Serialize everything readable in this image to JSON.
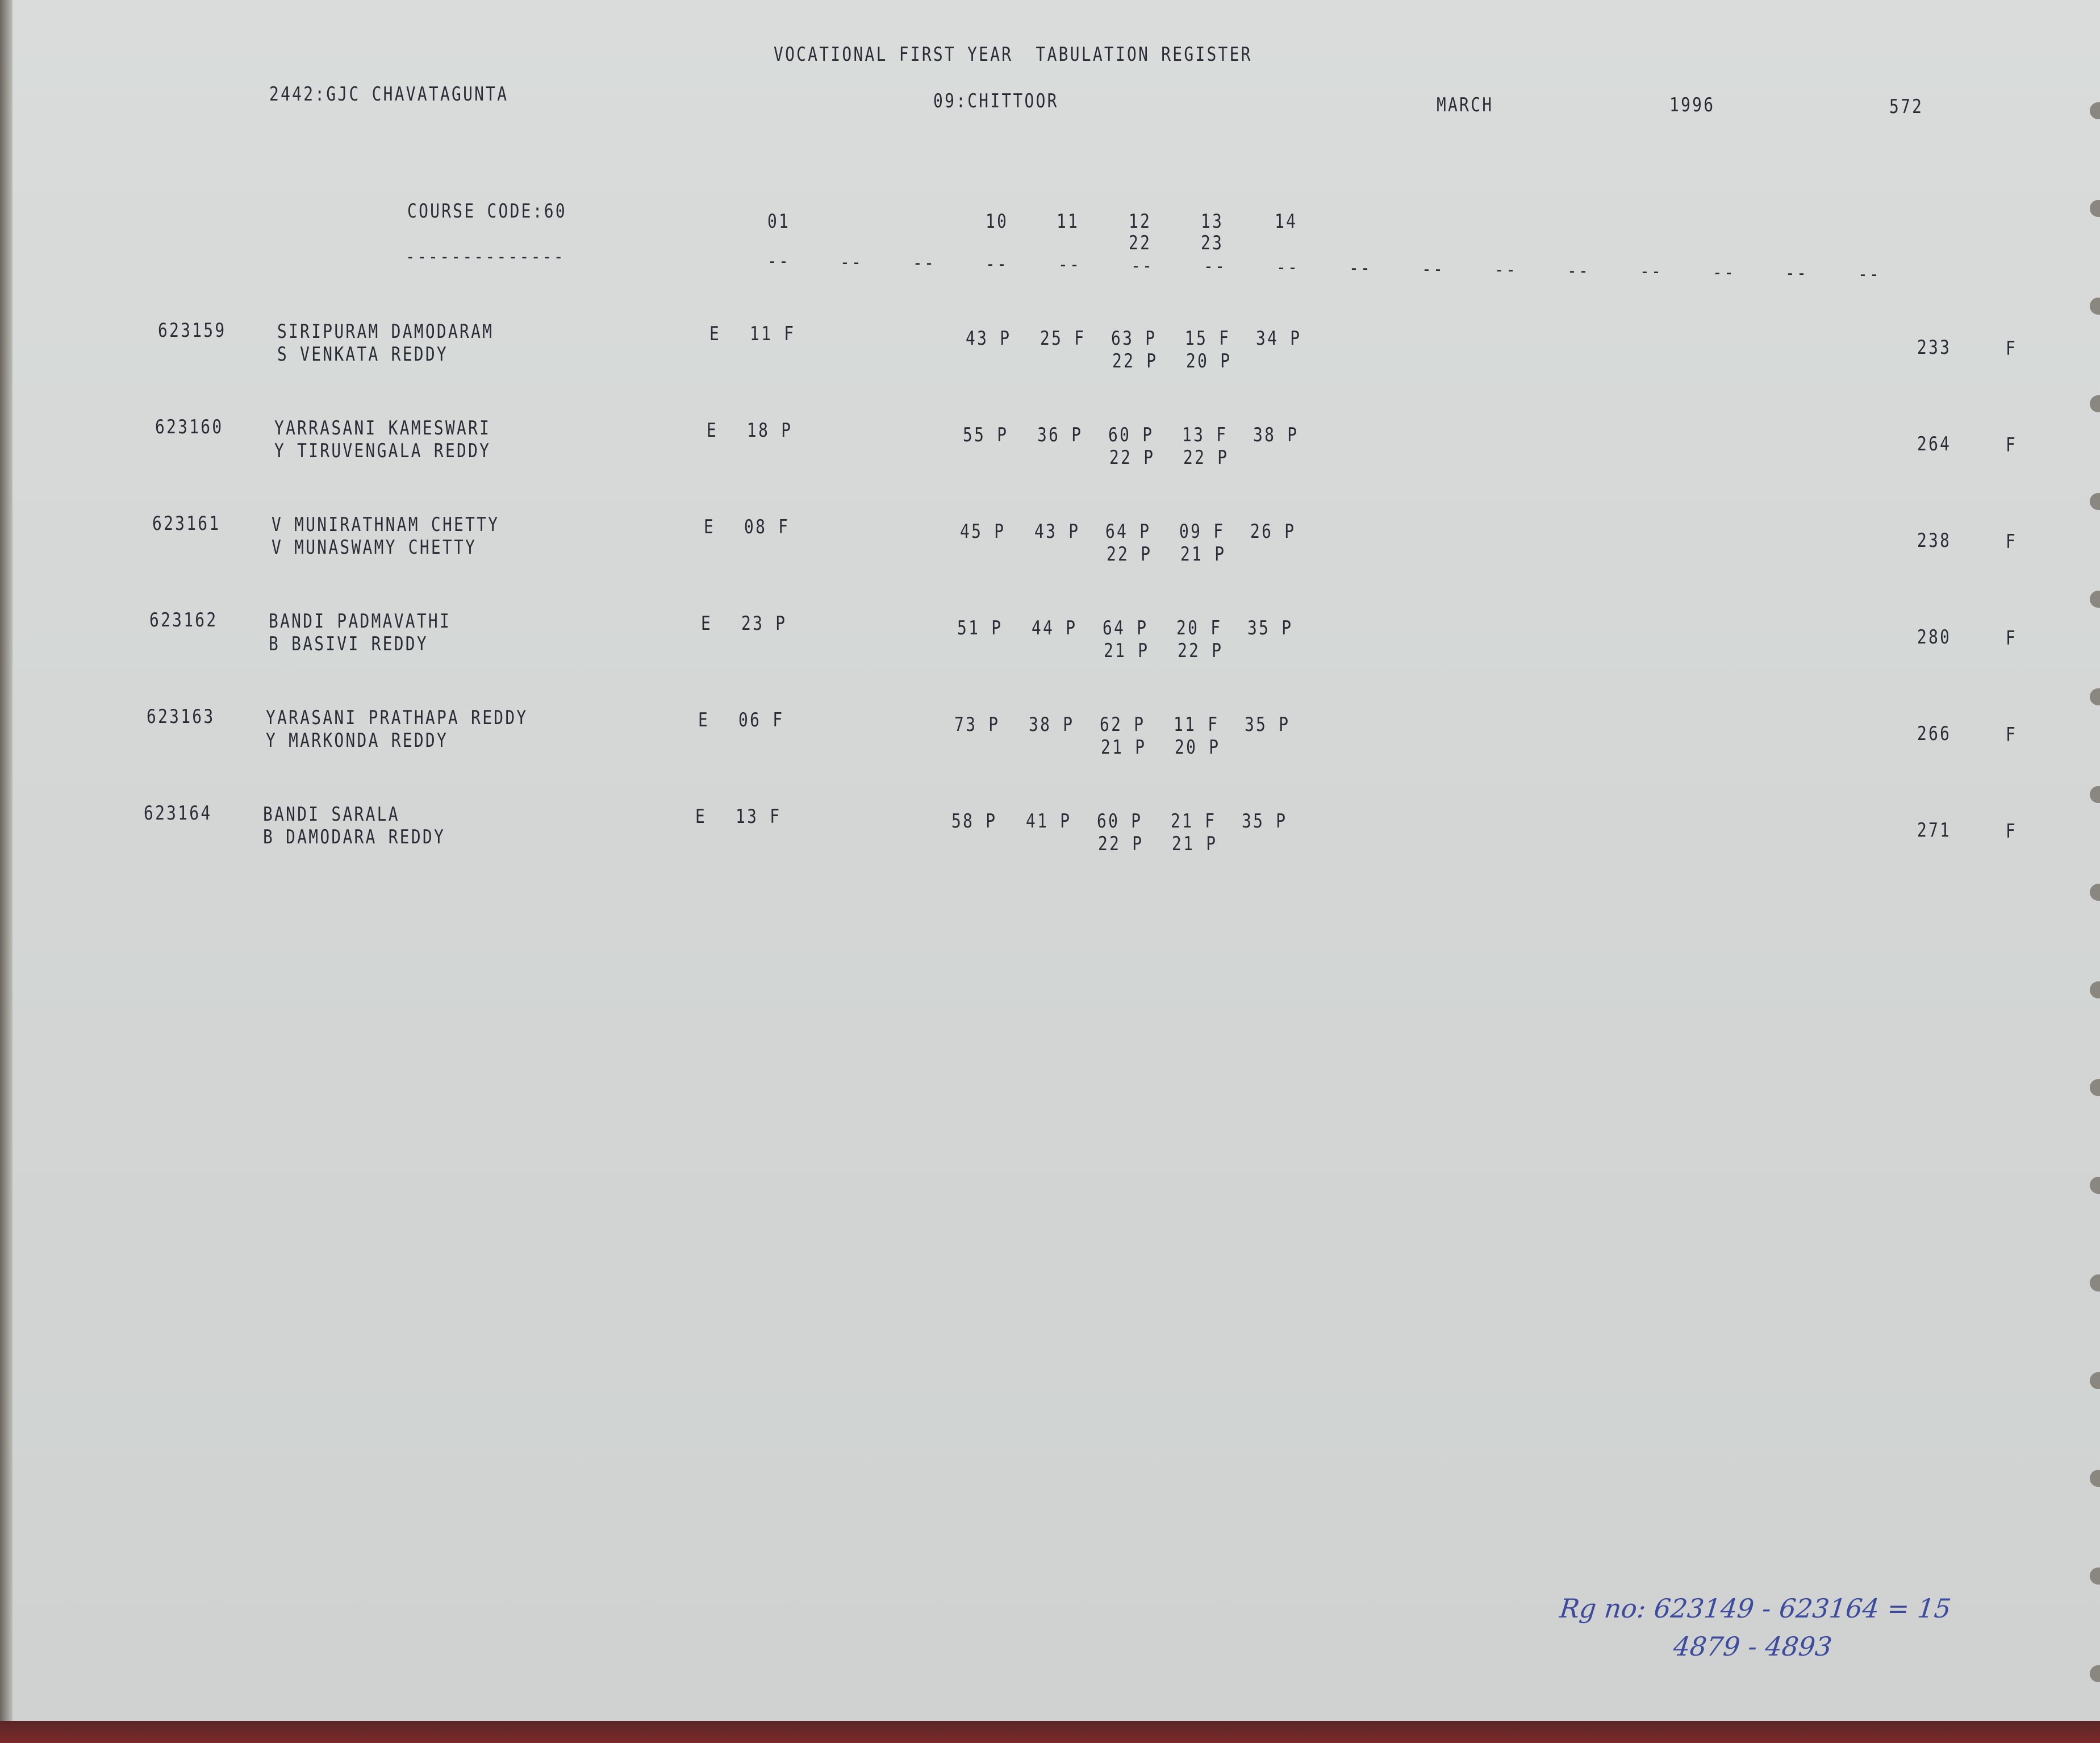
{
  "header": {
    "title": "VOCATIONAL FIRST YEAR  TABULATION REGISTER",
    "college": "2442:GJC CHAVATAGUNTA",
    "district": "09:CHITTOOR",
    "month": "MARCH",
    "year": "1996",
    "page": "572"
  },
  "columns": {
    "course_code": "COURSE CODE:60",
    "underline": "--------------",
    "codes": [
      "01",
      "10",
      "11",
      "12",
      "13",
      "14"
    ],
    "codes_second_line": [
      "22",
      "23"
    ],
    "dash": "--"
  },
  "students": [
    {
      "roll": "623159",
      "name": "SIRIPURAM DAMODARAM",
      "father": "S VENKATA REDDY",
      "lang": "E",
      "sub01": "11 F",
      "marks1": [
        "43 P",
        "25 F",
        "63 P",
        "15 F",
        "34 P"
      ],
      "marks2": [
        "22 P",
        "20 P"
      ],
      "total": "233",
      "result": "F"
    },
    {
      "roll": "623160",
      "name": "YARRASANI KAMESWARI",
      "father": "Y TIRUVENGALA REDDY",
      "lang": "E",
      "sub01": "18 P",
      "marks1": [
        "55 P",
        "36 P",
        "60 P",
        "13 F",
        "38 P"
      ],
      "marks2": [
        "22 P",
        "22 P"
      ],
      "total": "264",
      "result": "F"
    },
    {
      "roll": "623161",
      "name": "V MUNIRATHNAM CHETTY",
      "father": "V MUNASWAMY CHETTY",
      "lang": "E",
      "sub01": "08 F",
      "marks1": [
        "45 P",
        "43 P",
        "64 P",
        "09 F",
        "26 P"
      ],
      "marks2": [
        "22 P",
        "21 P"
      ],
      "total": "238",
      "result": "F"
    },
    {
      "roll": "623162",
      "name": "BANDI PADMAVATHI",
      "father": "B BASIVI REDDY",
      "lang": "E",
      "sub01": "23 P",
      "marks1": [
        "51 P",
        "44 P",
        "64 P",
        "20 F",
        "35 P"
      ],
      "marks2": [
        "21 P",
        "22 P"
      ],
      "total": "280",
      "result": "F"
    },
    {
      "roll": "623163",
      "name": "YARASANI PRATHAPA REDDY",
      "father": "Y MARKONDA REDDY",
      "lang": "E",
      "sub01": "06 F",
      "marks1": [
        "73 P",
        "38 P",
        "62 P",
        "11 F",
        "35 P"
      ],
      "marks2": [
        "21 P",
        "20 P"
      ],
      "total": "266",
      "result": "F"
    },
    {
      "roll": "623164",
      "name": "BANDI SARALA",
      "father": "B DAMODARA REDDY",
      "lang": "E",
      "sub01": "13 F",
      "marks1": [
        "58 P",
        "41 P",
        "60 P",
        "21 F",
        "35 P"
      ],
      "marks2": [
        "22 P",
        "21 P"
      ],
      "total": "271",
      "result": "F"
    }
  ],
  "handwritten_note": {
    "line1": "Rg no: 623149 - 623164 = 15",
    "line2": "4879 - 4893"
  }
}
